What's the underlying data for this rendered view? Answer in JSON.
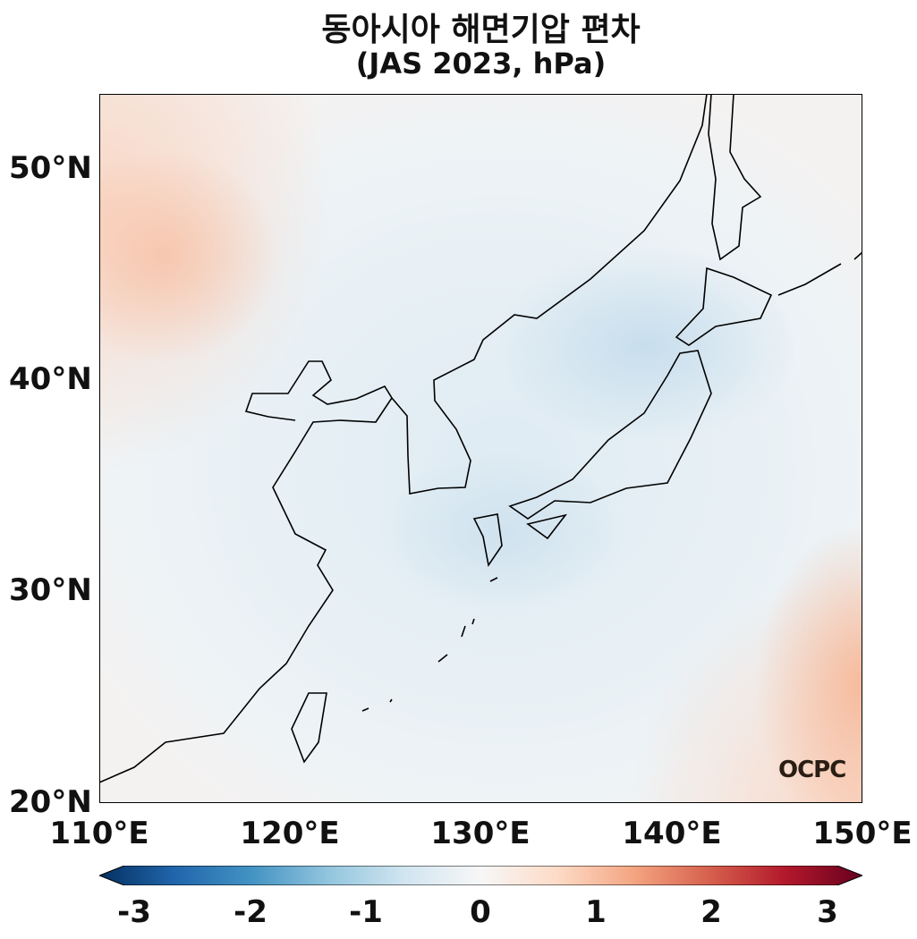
{
  "title_line1": "동아시아 해면기압 편차",
  "title_line2": "(JAS 2023, hPa)",
  "lat_labels": [
    "50°N",
    "40°N",
    "30°N",
    "20°N"
  ],
  "lon_labels": [
    "110°E",
    "120°E",
    "130°E",
    "140°E",
    "150°E"
  ],
  "logo": "OCPC",
  "colorbar": {
    "ticks": [
      "-3",
      "-2",
      "-1",
      "0",
      "1",
      "2",
      "3"
    ],
    "range": [
      -3,
      3
    ],
    "colormap": [
      "#053061",
      "#2166ac",
      "#4393c3",
      "#92c5de",
      "#d1e5f0",
      "#f7f7f7",
      "#fddbc7",
      "#f4a582",
      "#d6604d",
      "#b2182b",
      "#67001f"
    ]
  },
  "extent": {
    "lon": [
      110,
      150
    ],
    "lat": [
      20,
      53.5
    ]
  }
}
